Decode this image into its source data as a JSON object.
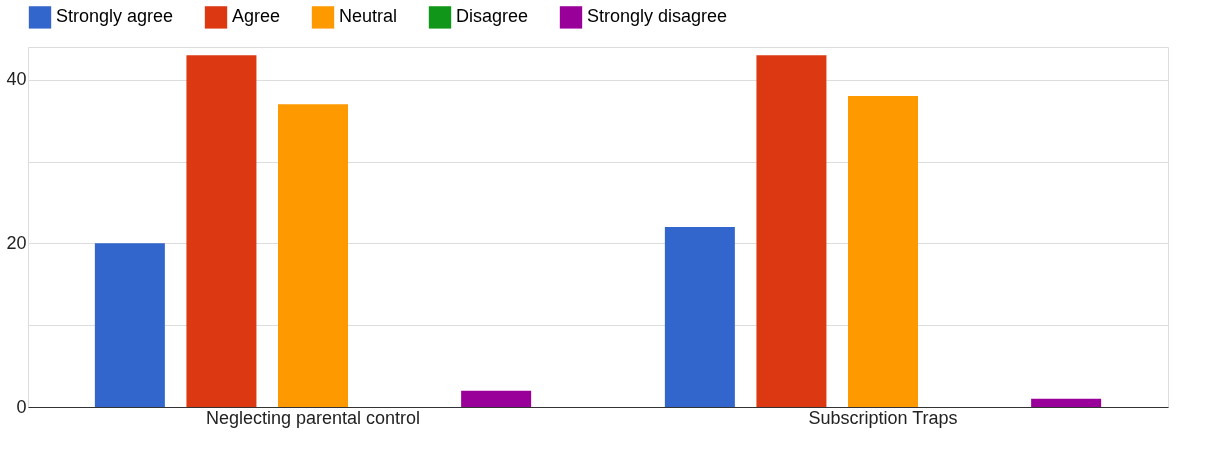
{
  "chart_data": {
    "type": "bar",
    "categories": [
      "Neglecting parental control",
      "Subscription Traps"
    ],
    "series": [
      {
        "name": "Strongly agree",
        "color": "#3366cc",
        "values": [
          20,
          22
        ]
      },
      {
        "name": "Agree",
        "color": "#dc3912",
        "values": [
          43,
          43
        ]
      },
      {
        "name": "Neutral",
        "color": "#ff9900",
        "values": [
          37,
          38
        ]
      },
      {
        "name": "Disagree",
        "color": "#109618",
        "values": [
          0,
          0
        ]
      },
      {
        "name": "Strongly disagree",
        "color": "#990099",
        "values": [
          2,
          1
        ]
      }
    ],
    "ylim": [
      0,
      44
    ],
    "yticks": [
      0,
      {
        "value": 10,
        "label": null
      },
      20,
      {
        "value": 30,
        "label": null
      },
      40
    ],
    "grid": "y",
    "legend": "top"
  }
}
